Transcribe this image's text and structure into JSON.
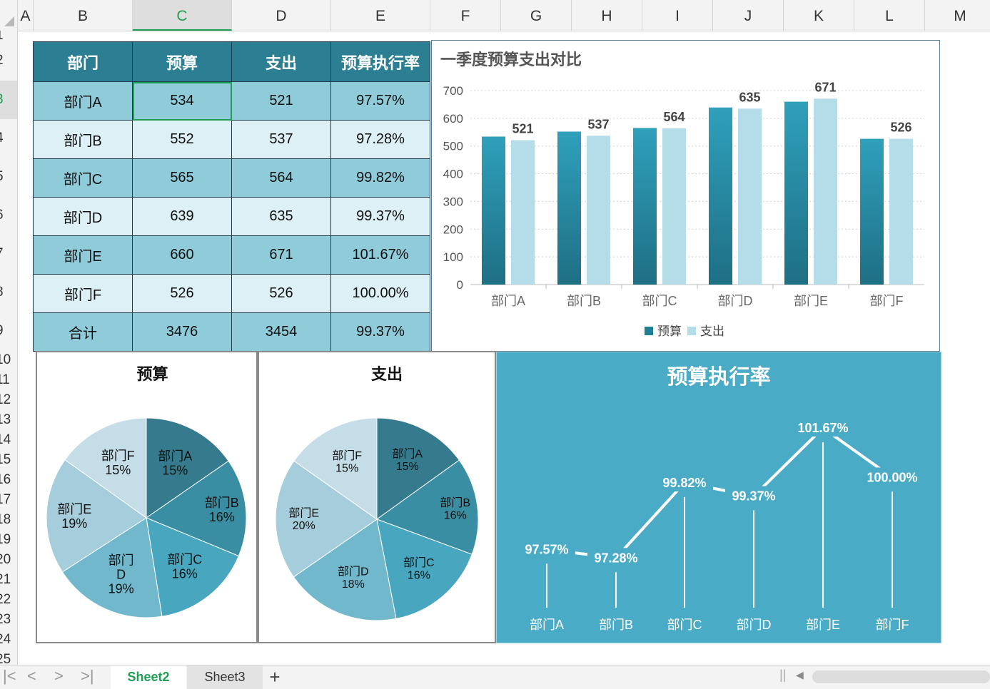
{
  "columns": [
    {
      "label": "A",
      "w": 22
    },
    {
      "label": "B",
      "w": 139
    },
    {
      "label": "C",
      "w": 139,
      "selected": true
    },
    {
      "label": "D",
      "w": 139
    },
    {
      "label": "E",
      "w": 139
    },
    {
      "label": "F",
      "w": 99
    },
    {
      "label": "G",
      "w": 99
    },
    {
      "label": "H",
      "w": 99
    },
    {
      "label": "I",
      "w": 99
    },
    {
      "label": "J",
      "w": 99
    },
    {
      "label": "K",
      "w": 99
    },
    {
      "label": "L",
      "w": 99
    },
    {
      "label": "M",
      "w": 99
    }
  ],
  "rows": [
    "1",
    "2",
    "3",
    "4",
    "5",
    "6",
    "7",
    "8",
    "9",
    "10",
    "11",
    "12",
    "13",
    "14",
    "15",
    "16",
    "17",
    "18",
    "19",
    "20",
    "21",
    "22",
    "23",
    "24",
    "25"
  ],
  "table": {
    "headers": [
      "部门",
      "预算",
      "支出",
      "预算执行率"
    ],
    "rows": [
      [
        "部门A",
        "534",
        "521",
        "97.57%"
      ],
      [
        "部门B",
        "552",
        "537",
        "97.28%"
      ],
      [
        "部门C",
        "565",
        "564",
        "99.82%"
      ],
      [
        "部门D",
        "639",
        "635",
        "99.37%"
      ],
      [
        "部门E",
        "660",
        "671",
        "101.67%"
      ],
      [
        "部门F",
        "526",
        "526",
        "100.00%"
      ],
      [
        "合计",
        "3476",
        "3454",
        "99.37%"
      ]
    ]
  },
  "tabs": {
    "items": [
      "Sheet2",
      "Sheet3"
    ],
    "active": "Sheet2",
    "add": "+"
  },
  "colors": {
    "budget": "#2b8fa8",
    "spend": "#b5dde8",
    "panel": "#4aabc6",
    "accent": "#1f9d55"
  },
  "chart_data": [
    {
      "type": "bar",
      "title": "一季度预算支出对比",
      "categories": [
        "部门A",
        "部门B",
        "部门C",
        "部门D",
        "部门E",
        "部门F"
      ],
      "series": [
        {
          "name": "预算",
          "values": [
            534,
            552,
            565,
            639,
            660,
            526
          ]
        },
        {
          "name": "支出",
          "values": [
            521,
            537,
            564,
            635,
            671,
            526
          ],
          "data_labels": [
            "521",
            "537",
            "564",
            "635",
            "671",
            "526"
          ]
        }
      ],
      "ylim": [
        0,
        700
      ],
      "yticks": [
        "0",
        "100",
        "200",
        "300",
        "400",
        "500",
        "600",
        "700"
      ],
      "grid": true,
      "legend": "bottom"
    },
    {
      "type": "pie",
      "title": "预算",
      "labels": [
        "部门A",
        "部门B",
        "部门C",
        "部门D",
        "部门E",
        "部门F"
      ],
      "values": [
        534,
        552,
        565,
        639,
        660,
        526
      ],
      "data_labels": [
        [
          "部门A",
          "15%"
        ],
        [
          "部门B",
          "16%"
        ],
        [
          "部门C",
          "16%"
        ],
        [
          "部门",
          "D",
          "19%"
        ],
        [
          "部门E",
          "19%"
        ],
        [
          "部门F",
          "15%"
        ]
      ]
    },
    {
      "type": "pie",
      "title": "支出",
      "labels": [
        "部门A",
        "部门B",
        "部门C",
        "部门D",
        "部门E",
        "部门F"
      ],
      "values": [
        521,
        537,
        564,
        635,
        671,
        526
      ],
      "data_labels": [
        [
          "部门A",
          "15%"
        ],
        [
          "部门B",
          "16%"
        ],
        [
          "部门C",
          "16%"
        ],
        [
          "部门D",
          "18%"
        ],
        [
          "部门E",
          "20%"
        ],
        [
          "部门F",
          "15%"
        ]
      ]
    },
    {
      "type": "line",
      "title": "预算执行率",
      "categories": [
        "部门A",
        "部门B",
        "部门C",
        "部门D",
        "部门E",
        "部门F"
      ],
      "values": [
        97.57,
        97.28,
        99.82,
        99.37,
        101.67,
        100.0
      ],
      "data_labels": [
        "97.57%",
        "97.28%",
        "99.82%",
        "99.37%",
        "101.67%",
        "100.00%"
      ],
      "ylim": [
        95.6,
        102.3
      ],
      "drop_lines": true
    }
  ]
}
